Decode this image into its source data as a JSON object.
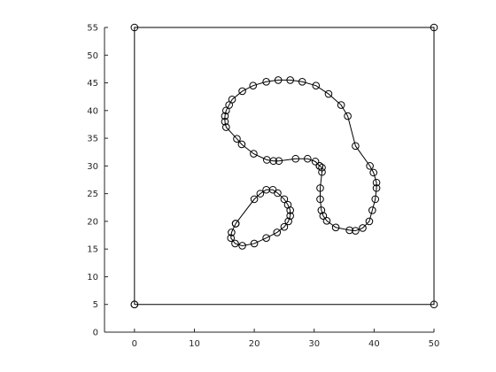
{
  "chart_data": {
    "type": "line",
    "title": "",
    "xlabel": "",
    "ylabel": "",
    "xlim": [
      -5,
      50
    ],
    "ylim": [
      0,
      55
    ],
    "xticks": [
      0,
      10,
      20,
      30,
      40,
      50
    ],
    "yticks": [
      0,
      5,
      10,
      15,
      20,
      25,
      30,
      35,
      40,
      45,
      50,
      55
    ],
    "grid": false,
    "legend": "none",
    "line_color": "#000000",
    "marker": "circle-open",
    "series": [
      {
        "values_xy": [
          [
            0,
            5
          ],
          [
            0,
            55
          ],
          [
            50,
            55
          ],
          [
            50,
            5
          ],
          [
            0,
            5
          ]
        ]
      },
      {
        "values_xy": [
          [
            30.9,
            30.0
          ],
          [
            30.2,
            30.8
          ],
          [
            28.9,
            31.3
          ],
          [
            26.9,
            31.3
          ],
          [
            24.1,
            30.9
          ],
          [
            23.2,
            30.9
          ],
          [
            22.1,
            31.1
          ],
          [
            19.9,
            32.2
          ],
          [
            17.9,
            33.9
          ],
          [
            17.1,
            34.9
          ],
          [
            15.3,
            37.0
          ],
          [
            15.1,
            38.0
          ],
          [
            15.1,
            39.0
          ],
          [
            15.3,
            40.0
          ],
          [
            15.8,
            41.0
          ],
          [
            16.3,
            42.0
          ],
          [
            18.0,
            43.5
          ],
          [
            19.8,
            44.5
          ],
          [
            22.0,
            45.2
          ],
          [
            24.0,
            45.5
          ],
          [
            26.0,
            45.5
          ],
          [
            28.0,
            45.2
          ],
          [
            30.3,
            44.5
          ],
          [
            32.4,
            43.0
          ],
          [
            34.5,
            41.0
          ],
          [
            35.6,
            39.0
          ],
          [
            36.9,
            33.6
          ],
          [
            39.3,
            30.0
          ],
          [
            39.9,
            28.8
          ],
          [
            40.4,
            27.0
          ],
          [
            40.4,
            26.0
          ],
          [
            40.2,
            24.0
          ],
          [
            39.7,
            22.0
          ],
          [
            39.2,
            20.0
          ],
          [
            38.1,
            18.8
          ],
          [
            36.9,
            18.3
          ],
          [
            35.9,
            18.4
          ],
          [
            33.6,
            18.9
          ],
          [
            32.1,
            20.1
          ],
          [
            31.5,
            21.0
          ],
          [
            31.2,
            22.0
          ],
          [
            31.0,
            24.0
          ],
          [
            31.0,
            26.0
          ],
          [
            31.3,
            28.9
          ],
          [
            31.3,
            29.7
          ],
          [
            30.9,
            30.0
          ]
        ]
      },
      {
        "values_xy": [
          [
            16.9,
            19.6
          ],
          [
            16.2,
            18.0
          ],
          [
            16.1,
            17.0
          ],
          [
            16.8,
            16.0
          ],
          [
            18.0,
            15.6
          ],
          [
            20.0,
            16.0
          ],
          [
            22.0,
            17.0
          ],
          [
            23.8,
            18.0
          ],
          [
            25.0,
            19.0
          ],
          [
            25.7,
            20.0
          ],
          [
            26.0,
            21.0
          ],
          [
            26.0,
            22.0
          ],
          [
            25.6,
            23.0
          ],
          [
            25.0,
            24.0
          ],
          [
            23.9,
            25.1
          ],
          [
            23.1,
            25.7
          ],
          [
            22.0,
            25.7
          ],
          [
            21.0,
            25.0
          ],
          [
            20.0,
            24.0
          ],
          [
            16.9,
            19.6
          ]
        ]
      }
    ]
  }
}
